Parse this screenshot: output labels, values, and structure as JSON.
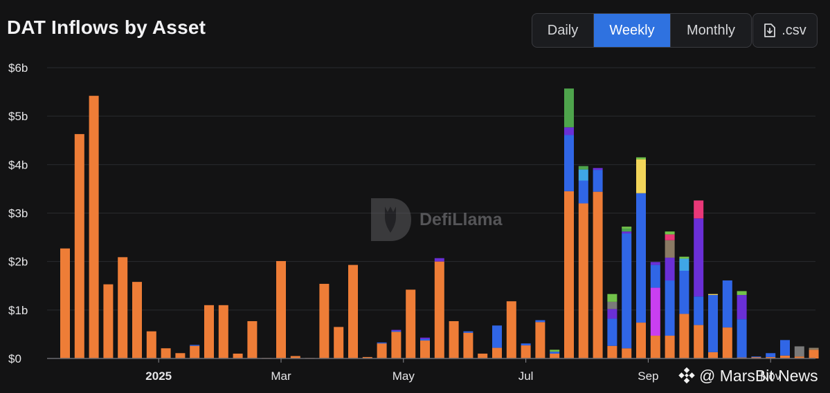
{
  "header": {
    "title": "DAT Inflows by Asset",
    "tabs": [
      {
        "label": "Daily",
        "active": false
      },
      {
        "label": "Weekly",
        "active": true
      },
      {
        "label": "Monthly",
        "active": false
      }
    ],
    "csv_label": ".csv"
  },
  "watermark": {
    "text": "DefiLlama"
  },
  "credit": {
    "text": "@ MarsBit News"
  },
  "colors": {
    "background": "#131314",
    "grid": "#2a2b2f",
    "active_tab": "#2f72e0"
  },
  "chart_data": {
    "type": "bar",
    "stacked": true,
    "title": "DAT Inflows by Asset",
    "xlabel": "",
    "ylabel": "",
    "ylim": [
      0,
      6000000000
    ],
    "y_ticks": [
      {
        "value": 0,
        "label": "$0"
      },
      {
        "value": 1000000000,
        "label": "$1b"
      },
      {
        "value": 2000000000,
        "label": "$2b"
      },
      {
        "value": 3000000000,
        "label": "$3b"
      },
      {
        "value": 4000000000,
        "label": "$4b"
      },
      {
        "value": 5000000000,
        "label": "$5b"
      },
      {
        "value": 6000000000,
        "label": "$6b"
      }
    ],
    "x_ticks": [
      {
        "index": 6.5,
        "label": "2025",
        "bold": true
      },
      {
        "index": 15,
        "label": "Mar",
        "bold": false
      },
      {
        "index": 23.5,
        "label": "May",
        "bold": false
      },
      {
        "index": 32,
        "label": "Jul",
        "bold": false
      },
      {
        "index": 40.5,
        "label": "Sep",
        "bold": false
      },
      {
        "index": 49,
        "label": "Nov",
        "bold": false
      }
    ],
    "grid": true,
    "legend": "none",
    "series_colors": {
      "orange": "#ee7d37",
      "blue": "#3066e6",
      "purple": "#6a2fd6",
      "green": "#4ea44c",
      "lightblue": "#3fa6e6",
      "lime": "#72c24a",
      "yellow": "#f2d55a",
      "magenta": "#c93ff0",
      "pink": "#e93878",
      "gray": "#7a7a7a",
      "tan": "#8a7a64"
    },
    "bars": [
      {
        "segments": [
          [
            "orange",
            2270000000
          ]
        ]
      },
      {
        "segments": [
          [
            "orange",
            4630000000
          ]
        ]
      },
      {
        "segments": [
          [
            "orange",
            5420000000
          ]
        ]
      },
      {
        "segments": [
          [
            "orange",
            1530000000
          ]
        ]
      },
      {
        "segments": [
          [
            "orange",
            2090000000
          ]
        ]
      },
      {
        "segments": [
          [
            "orange",
            1580000000
          ]
        ]
      },
      {
        "segments": [
          [
            "orange",
            560000000
          ]
        ]
      },
      {
        "segments": [
          [
            "orange",
            210000000
          ]
        ]
      },
      {
        "segments": [
          [
            "orange",
            110000000
          ]
        ]
      },
      {
        "segments": [
          [
            "orange",
            260000000
          ],
          [
            "blue",
            20000000
          ]
        ]
      },
      {
        "segments": [
          [
            "orange",
            1100000000
          ]
        ]
      },
      {
        "segments": [
          [
            "orange",
            1100000000
          ]
        ]
      },
      {
        "segments": [
          [
            "orange",
            100000000
          ]
        ]
      },
      {
        "segments": [
          [
            "orange",
            770000000
          ]
        ]
      },
      {
        "segments": [
          [
            "orange",
            10000000
          ]
        ]
      },
      {
        "segments": [
          [
            "orange",
            2010000000
          ]
        ]
      },
      {
        "segments": [
          [
            "orange",
            50000000
          ]
        ]
      },
      {
        "segments": [
          [
            "orange",
            10000000
          ]
        ]
      },
      {
        "segments": [
          [
            "orange",
            1540000000
          ]
        ]
      },
      {
        "segments": [
          [
            "orange",
            650000000
          ]
        ]
      },
      {
        "segments": [
          [
            "orange",
            1930000000
          ]
        ]
      },
      {
        "segments": [
          [
            "orange",
            30000000
          ]
        ]
      },
      {
        "segments": [
          [
            "orange",
            310000000
          ],
          [
            "blue",
            20000000
          ]
        ]
      },
      {
        "segments": [
          [
            "orange",
            550000000
          ],
          [
            "blue",
            20000000
          ],
          [
            "purple",
            20000000
          ]
        ]
      },
      {
        "segments": [
          [
            "orange",
            1420000000
          ]
        ]
      },
      {
        "segments": [
          [
            "orange",
            370000000
          ],
          [
            "blue",
            30000000
          ],
          [
            "purple",
            30000000
          ]
        ]
      },
      {
        "segments": [
          [
            "orange",
            2000000000
          ],
          [
            "purple",
            70000000
          ]
        ]
      },
      {
        "segments": [
          [
            "orange",
            770000000
          ]
        ]
      },
      {
        "segments": [
          [
            "orange",
            530000000
          ],
          [
            "blue",
            30000000
          ]
        ]
      },
      {
        "segments": [
          [
            "orange",
            100000000
          ]
        ]
      },
      {
        "segments": [
          [
            "orange",
            220000000
          ],
          [
            "blue",
            460000000
          ]
        ]
      },
      {
        "segments": [
          [
            "orange",
            1180000000
          ]
        ]
      },
      {
        "segments": [
          [
            "orange",
            270000000
          ],
          [
            "blue",
            40000000
          ]
        ]
      },
      {
        "segments": [
          [
            "orange",
            750000000
          ],
          [
            "blue",
            40000000
          ]
        ]
      },
      {
        "segments": [
          [
            "orange",
            100000000
          ],
          [
            "blue",
            40000000
          ],
          [
            "lime",
            40000000
          ]
        ]
      },
      {
        "segments": [
          [
            "orange",
            3450000000
          ],
          [
            "blue",
            1160000000
          ],
          [
            "purple",
            160000000
          ],
          [
            "green",
            800000000
          ]
        ]
      },
      {
        "segments": [
          [
            "orange",
            3200000000
          ],
          [
            "blue",
            470000000
          ],
          [
            "lightblue",
            230000000
          ],
          [
            "green",
            70000000
          ]
        ]
      },
      {
        "segments": [
          [
            "orange",
            3440000000
          ],
          [
            "blue",
            450000000
          ],
          [
            "purple",
            40000000
          ]
        ]
      },
      {
        "segments": [
          [
            "orange",
            260000000
          ],
          [
            "blue",
            560000000
          ],
          [
            "purple",
            200000000
          ],
          [
            "gray",
            150000000
          ],
          [
            "lime",
            160000000
          ]
        ]
      },
      {
        "segments": [
          [
            "orange",
            210000000
          ],
          [
            "blue",
            2370000000
          ],
          [
            "purple",
            40000000
          ],
          [
            "green",
            60000000
          ],
          [
            "lime",
            40000000
          ]
        ]
      },
      {
        "segments": [
          [
            "orange",
            740000000
          ],
          [
            "blue",
            2670000000
          ],
          [
            "yellow",
            700000000
          ],
          [
            "lime",
            40000000
          ]
        ]
      },
      {
        "segments": [
          [
            "orange",
            470000000
          ],
          [
            "magenta",
            990000000
          ],
          [
            "blue",
            470000000
          ],
          [
            "purple",
            60000000
          ]
        ]
      },
      {
        "segments": [
          [
            "orange",
            470000000
          ],
          [
            "blue",
            1140000000
          ],
          [
            "purple",
            470000000
          ],
          [
            "tan",
            360000000
          ],
          [
            "pink",
            120000000
          ],
          [
            "lime",
            60000000
          ]
        ]
      },
      {
        "segments": [
          [
            "orange",
            920000000
          ],
          [
            "blue",
            890000000
          ],
          [
            "lightblue",
            250000000
          ],
          [
            "lime",
            40000000
          ]
        ]
      },
      {
        "segments": [
          [
            "orange",
            690000000
          ],
          [
            "blue",
            590000000
          ],
          [
            "purple",
            1610000000
          ],
          [
            "pink",
            370000000
          ]
        ]
      },
      {
        "segments": [
          [
            "orange",
            130000000
          ],
          [
            "blue",
            1180000000
          ],
          [
            "yellow",
            20000000
          ]
        ]
      },
      {
        "segments": [
          [
            "orange",
            640000000
          ],
          [
            "blue",
            970000000
          ]
        ]
      },
      {
        "segments": [
          [
            "orange",
            20000000
          ],
          [
            "blue",
            790000000
          ],
          [
            "purple",
            500000000
          ],
          [
            "lime",
            80000000
          ]
        ]
      },
      {
        "segments": [
          [
            "orange",
            30000000
          ],
          [
            "blue",
            10000000
          ]
        ]
      },
      {
        "segments": [
          [
            "orange",
            30000000
          ],
          [
            "blue",
            80000000
          ]
        ]
      },
      {
        "segments": [
          [
            "orange",
            60000000
          ],
          [
            "blue",
            320000000
          ]
        ]
      },
      {
        "segments": [
          [
            "orange",
            40000000
          ],
          [
            "gray",
            210000000
          ]
        ]
      },
      {
        "segments": [
          [
            "orange",
            180000000
          ],
          [
            "tan",
            40000000
          ]
        ]
      }
    ]
  }
}
